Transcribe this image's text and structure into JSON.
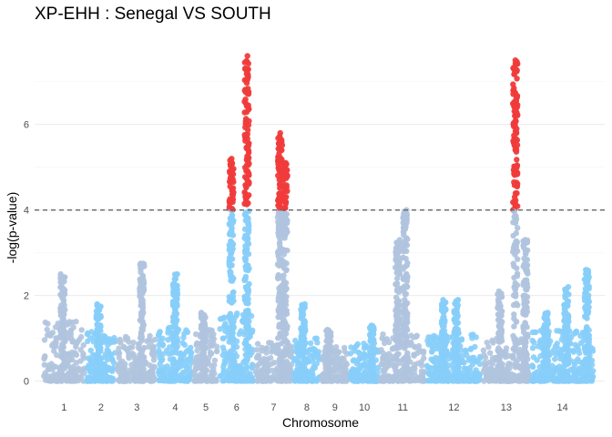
{
  "chart_data": {
    "type": "scatter",
    "subtype": "manhattan",
    "title": "XP-EHH : Senegal VS SOUTH",
    "xlabel": "Chromosome",
    "ylabel": "-log(p-value)",
    "ylim": [
      -0.2,
      8.1
    ],
    "yticks": [
      0,
      2,
      4,
      6
    ],
    "threshold": 4,
    "threshold_style": "dashed",
    "grid": true,
    "legend": "none",
    "colors": {
      "chrom_odd": "#b0c4de",
      "chrom_even": "#87cefa",
      "significant": "#f03b3b",
      "threshold_line": "#666666"
    },
    "chromosomes": [
      {
        "label": "1",
        "range": [
          0.0,
          8.5
        ],
        "base": 1.4,
        "peaks": [
          [
            4.0,
            2.5
          ]
        ]
      },
      {
        "label": "2",
        "range": [
          8.5,
          14.5
        ],
        "base": 1.2,
        "peaks": [
          [
            11.0,
            1.8
          ]
        ]
      },
      {
        "label": "3",
        "range": [
          14.5,
          22.5
        ],
        "base": 1.1,
        "peaks": [
          [
            19.5,
            2.75
          ]
        ]
      },
      {
        "label": "4",
        "range": [
          22.5,
          29.5
        ],
        "base": 1.3,
        "peaks": [
          [
            26.0,
            2.5
          ]
        ]
      },
      {
        "label": "5",
        "range": [
          29.5,
          34.5
        ],
        "base": 1.2,
        "peaks": [
          [
            31.5,
            1.6
          ]
        ]
      },
      {
        "label": "6",
        "range": [
          34.5,
          41.5
        ],
        "base": 1.6,
        "peaks": [
          [
            37.0,
            5.2
          ],
          [
            40.0,
            7.6
          ]
        ]
      },
      {
        "label": "7",
        "range": [
          41.5,
          49.0
        ],
        "base": 0.9,
        "peaks": [
          [
            46.5,
            5.8
          ],
          [
            47.5,
            5.1
          ]
        ]
      },
      {
        "label": "8",
        "range": [
          49.0,
          54.5
        ],
        "base": 1.0,
        "peaks": [
          [
            51.0,
            1.8
          ]
        ]
      },
      {
        "label": "9",
        "range": [
          54.5,
          60.0
        ],
        "base": 0.8,
        "peaks": [
          [
            56.0,
            1.2
          ]
        ]
      },
      {
        "label": "10",
        "range": [
          60.0,
          66.0
        ],
        "base": 0.9,
        "peaks": [
          [
            64.5,
            1.3
          ]
        ]
      },
      {
        "label": "11",
        "range": [
          66.0,
          75.0
        ],
        "base": 1.1,
        "peaks": [
          [
            69.5,
            3.3
          ],
          [
            71.0,
            4.0
          ]
        ]
      },
      {
        "label": "12",
        "range": [
          75.0,
          86.0
        ],
        "base": 1.1,
        "peaks": [
          [
            78.5,
            1.9
          ],
          [
            81.0,
            1.9
          ]
        ]
      },
      {
        "label": "13",
        "range": [
          86.0,
          95.5
        ],
        "base": 1.0,
        "peaks": [
          [
            89.5,
            2.1
          ],
          [
            92.5,
            7.5
          ],
          [
            94.5,
            3.3
          ]
        ]
      },
      {
        "label": "14",
        "range": [
          95.5,
          108.0
        ],
        "base": 1.2,
        "peaks": [
          [
            98.5,
            1.6
          ],
          [
            102.5,
            2.2
          ],
          [
            106.5,
            2.6
          ]
        ]
      }
    ],
    "xlim": [
      -1.5,
      110.0
    ]
  }
}
